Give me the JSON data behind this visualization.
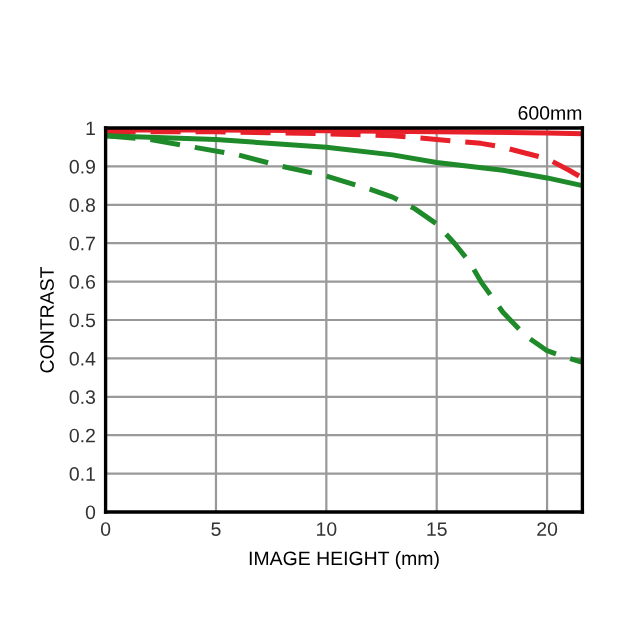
{
  "chart_data": {
    "type": "line",
    "title": "600mm",
    "xlabel": "IMAGE HEIGHT (mm)",
    "ylabel": "CONTRAST",
    "xlim": [
      0,
      21.6
    ],
    "xticks": [
      0,
      5,
      10,
      15,
      20
    ],
    "ylim": [
      0,
      1
    ],
    "yticks": [
      0,
      0.1,
      0.2,
      0.3,
      0.4,
      0.5,
      0.6,
      0.7,
      0.8,
      0.9,
      1
    ],
    "grid": true,
    "marker": "none",
    "series": [
      {
        "color": "#e8202a",
        "line_style": "solid",
        "x": [
          0,
          5,
          10,
          15,
          20,
          21.6
        ],
        "values": [
          0.995,
          0.995,
          0.993,
          0.99,
          0.987,
          0.985
        ]
      },
      {
        "color": "#e8202a",
        "line_style": "dashed",
        "x": [
          0,
          5,
          10,
          13,
          15,
          17,
          18,
          19,
          20,
          21,
          21.6
        ],
        "values": [
          0.99,
          0.99,
          0.985,
          0.98,
          0.97,
          0.96,
          0.95,
          0.935,
          0.92,
          0.89,
          0.87
        ]
      },
      {
        "color": "#1e8a2a",
        "line_style": "solid",
        "x": [
          0,
          5,
          10,
          13,
          15,
          18,
          20,
          21.6
        ],
        "values": [
          0.98,
          0.97,
          0.95,
          0.93,
          0.91,
          0.89,
          0.87,
          0.85
        ]
      },
      {
        "color": "#1e8a2a",
        "line_style": "dashed",
        "x": [
          0,
          2,
          4,
          6,
          8,
          10,
          12,
          13,
          14,
          15,
          15.8,
          16.5,
          17,
          17.5,
          18,
          18.5,
          19,
          19.5,
          20,
          20.5,
          21,
          21.6
        ],
        "values": [
          0.98,
          0.97,
          0.95,
          0.93,
          0.9,
          0.875,
          0.84,
          0.82,
          0.79,
          0.75,
          0.7,
          0.65,
          0.6,
          0.56,
          0.52,
          0.49,
          0.46,
          0.44,
          0.42,
          0.41,
          0.4,
          0.39
        ]
      }
    ]
  }
}
